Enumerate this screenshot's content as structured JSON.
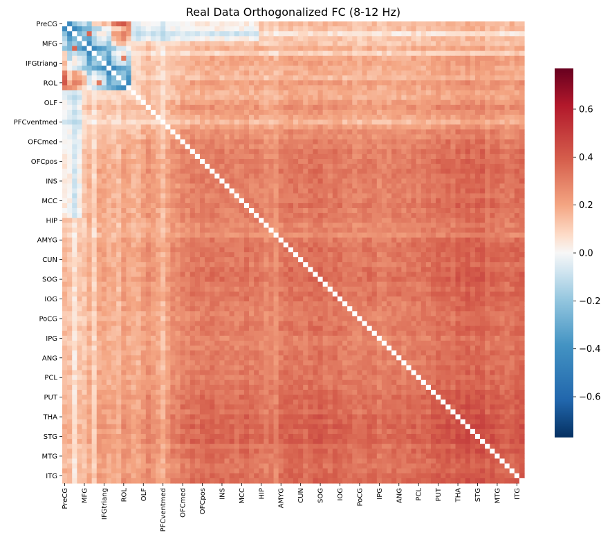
{
  "chart_data": {
    "type": "heatmap",
    "title": "Real Data Orthogonalized FC (8-12 Hz)",
    "n_regions": 94,
    "tick_every": 4,
    "tick_labels": [
      "PreCG",
      "MFG",
      "IFGtriang",
      "ROL",
      "OLF",
      "PFCventmed",
      "OFCmed",
      "OFCpos",
      "INS",
      "MCC",
      "HIP",
      "AMYG",
      "CUN",
      "SOG",
      "IOG",
      "PoCG",
      "IPG",
      "ANG",
      "PCL",
      "PUT",
      "THA",
      "STG",
      "MTG",
      "ITG"
    ],
    "x_tick_labels": [
      "PreCG",
      "MFG",
      "IFGtriang",
      "ROL",
      "OLF",
      "PFCventmed",
      "OFCmed",
      "OFCpos",
      "INS",
      "MCC",
      "HIP",
      "AMYG",
      "CUN",
      "SOG",
      "IOG",
      "PoCG",
      "IPG",
      "ANG",
      "PCL",
      "PUT",
      "THA",
      "STG",
      "MTG",
      "ITG"
    ],
    "y_tick_labels": [
      "PreCG",
      "MFG",
      "IFGtriang",
      "ROL",
      "OLF",
      "PFCventmed",
      "OFCmed",
      "OFCpos",
      "INS",
      "MCC",
      "HIP",
      "AMYG",
      "CUN",
      "SOG",
      "IOG",
      "PoCG",
      "IPG",
      "ANG",
      "PCL",
      "PUT",
      "THA",
      "STG",
      "MTG",
      "ITG"
    ],
    "diagonal": "masked",
    "colorbar": {
      "vmin": -0.77,
      "vmax": 0.77,
      "ticks": [
        0.6,
        0.4,
        0.2,
        0.0,
        -0.2,
        -0.4,
        -0.6
      ],
      "tick_labels": [
        "0.6",
        "0.4",
        "0.2",
        "0.0",
        "−0.2",
        "−0.4",
        "−0.6"
      ],
      "colormap": "RdBu_r"
    },
    "region_strength": [
      0.05,
      0.02,
      -0.1,
      0.0,
      0.0,
      0.1,
      -0.05,
      0.15,
      0.15,
      0.1,
      0.1,
      0.05,
      0.2,
      0.15,
      0.1,
      0.1,
      0.2,
      0.3,
      0.2,
      0.15,
      0.05,
      0.2,
      0.35,
      0.3,
      0.45,
      0.4,
      0.5,
      0.45,
      0.5,
      0.5,
      0.55,
      0.5,
      0.5,
      0.45,
      0.5,
      0.45,
      0.5,
      0.55,
      0.45,
      0.5,
      0.45,
      0.35,
      0.4,
      0.3,
      0.5,
      0.55,
      0.6,
      0.55,
      0.55,
      0.5,
      0.6,
      0.6,
      0.65,
      0.55,
      0.5,
      0.6,
      0.55,
      0.5,
      0.5,
      0.45,
      0.45,
      0.5,
      0.55,
      0.5,
      0.4,
      0.45,
      0.45,
      0.5,
      0.5,
      0.45,
      0.5,
      0.55,
      0.5,
      0.55,
      0.55,
      0.6,
      0.7,
      0.65,
      0.7,
      0.6,
      0.75,
      0.7,
      0.8,
      0.7,
      0.75,
      0.8,
      0.6,
      0.7,
      0.65,
      0.6,
      0.55,
      0.6,
      0.65,
      0.7
    ]
  },
  "colors": {
    "negative_extreme": "#053061",
    "negative": "#2166ac",
    "negative_light": "#92c5de",
    "neutral": "#f7f7f7",
    "positive_light": "#f4a582",
    "positive": "#b2182b",
    "positive_extreme": "#67001f",
    "diagonal": "#ffffff"
  }
}
